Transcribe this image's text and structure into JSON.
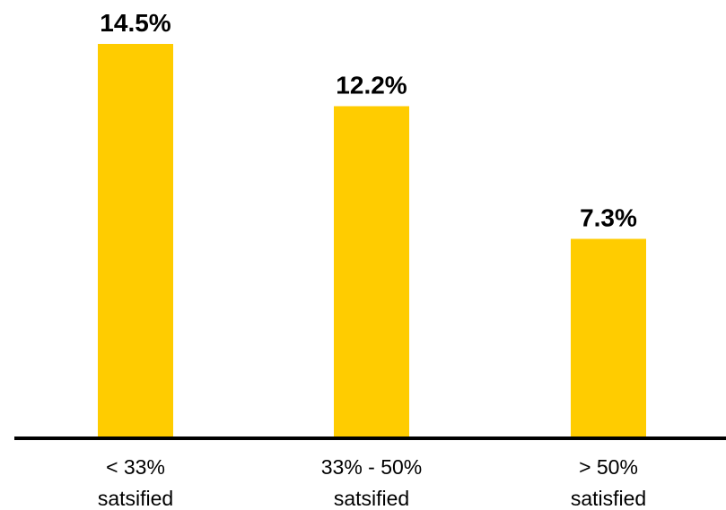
{
  "chart_data": {
    "type": "bar",
    "categories": [
      [
        "< 33%",
        "satsified"
      ],
      [
        "33% - 50%",
        "satsified"
      ],
      [
        "> 50%",
        "satisfied"
      ]
    ],
    "values": [
      14.5,
      12.2,
      7.3
    ],
    "value_labels": [
      "14.5%",
      "12.2%",
      "7.3%"
    ],
    "title": "",
    "xlabel": "",
    "ylabel": "",
    "ylim": [
      0,
      14.5
    ],
    "grid": false,
    "legend": "none",
    "colors": {
      "bar": "#FFCC00",
      "axis": "#000000",
      "text": "#000000"
    }
  }
}
